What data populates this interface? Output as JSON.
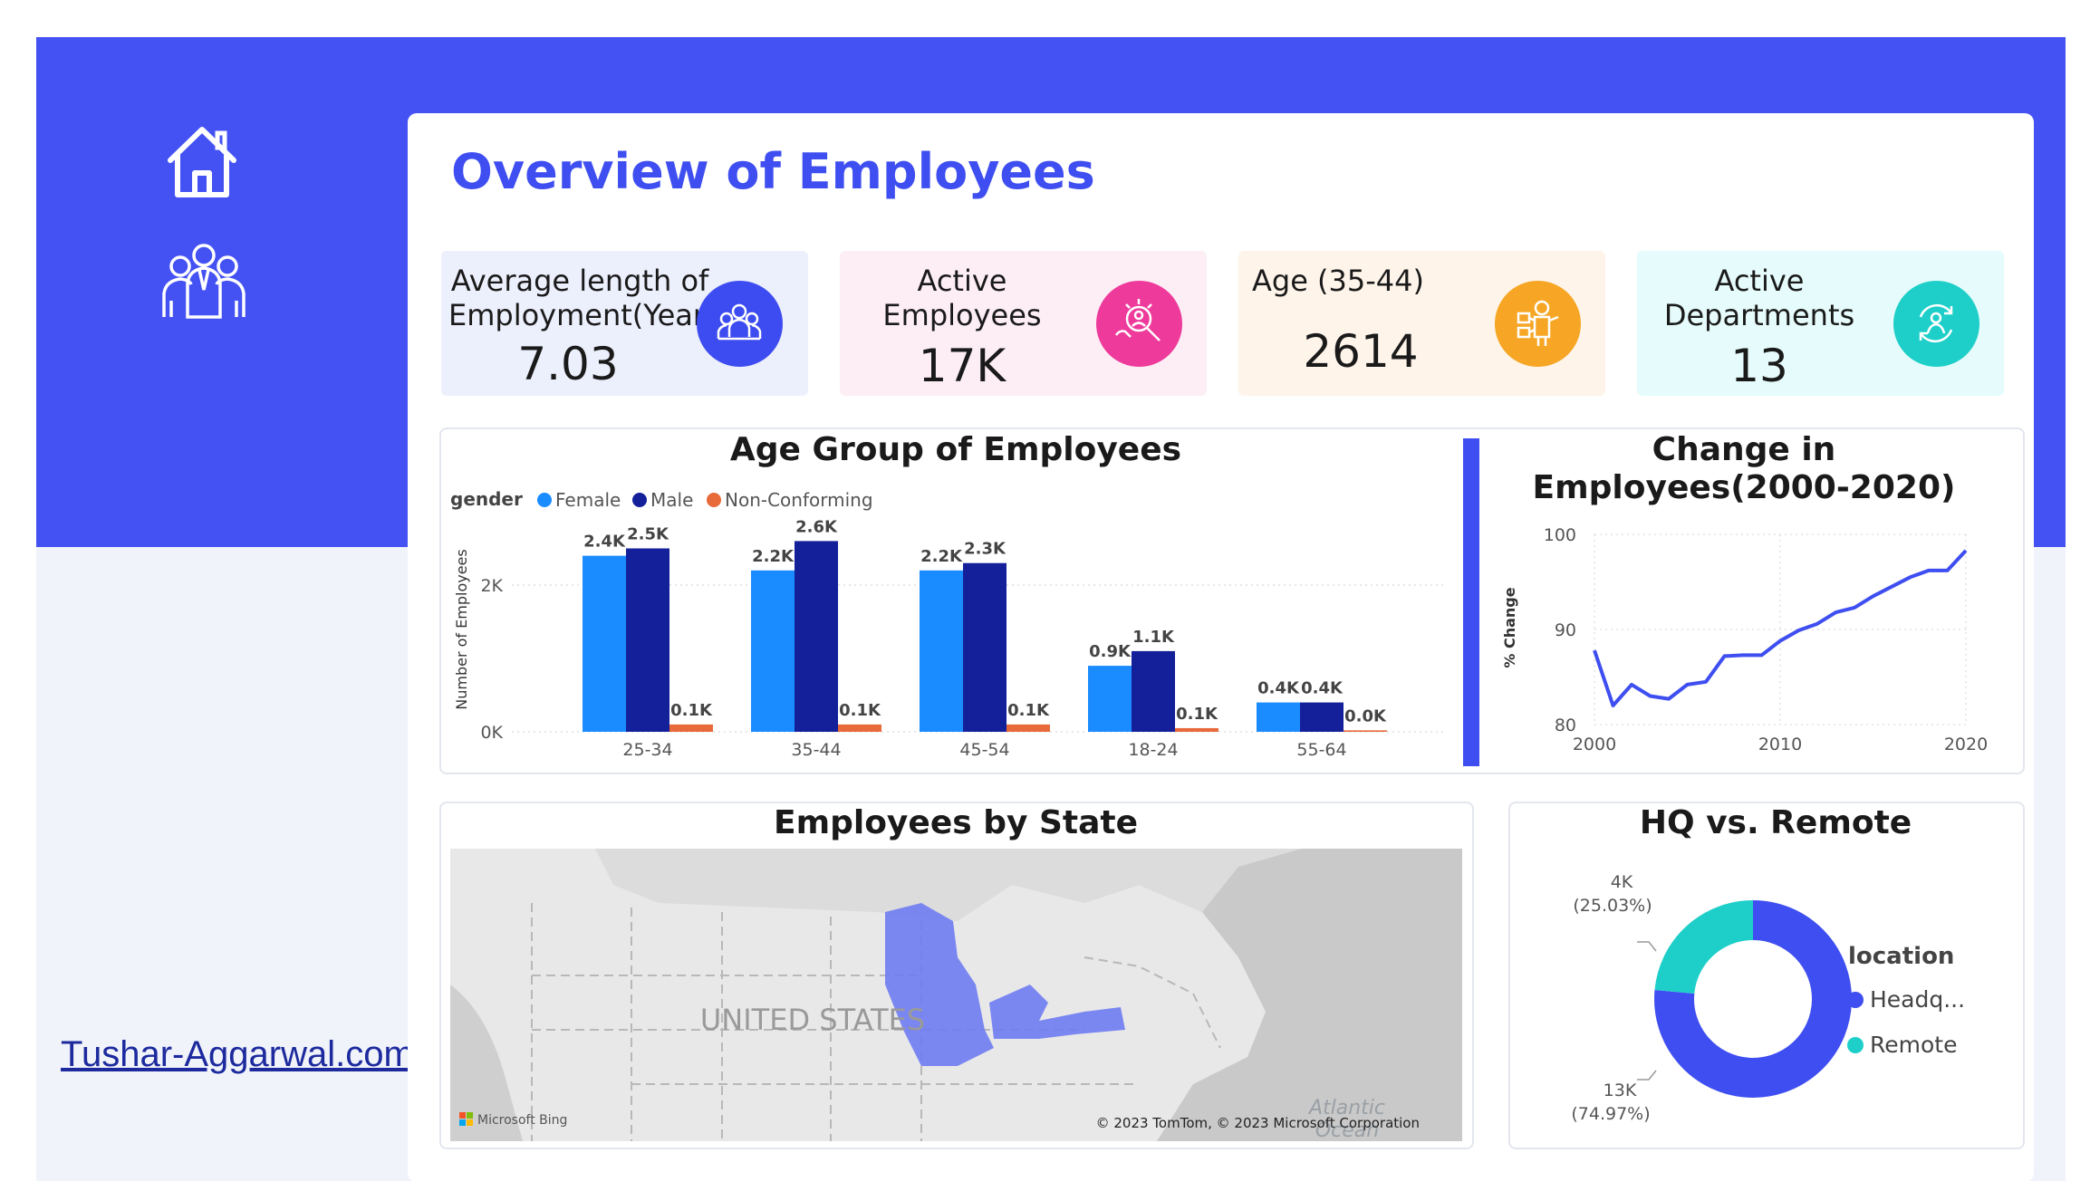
{
  "title": "Overview of Employees",
  "site_link": "Tushar-Aggarwal.com",
  "kpis": [
    {
      "label_lines": [
        "Average length of",
        "Employment(Years)"
      ],
      "value": "7.03",
      "bg": "#eceffc",
      "icon_color": "#3d4cf0",
      "icon": "team-icon"
    },
    {
      "label_lines": [
        "Active",
        "Employees"
      ],
      "value": "17K",
      "bg": "#fdeef5",
      "icon_color": "#ee3a9b",
      "icon": "recruit-search-icon"
    },
    {
      "label_lines": [
        "Age (35-44)"
      ],
      "value": "2614",
      "bg": "#fef4ea",
      "icon_color": "#f6a624",
      "icon": "worker-icon"
    },
    {
      "label_lines": [
        "Active",
        "Departments"
      ],
      "value": "13",
      "bg": "#e6fbfb",
      "icon_color": "#1ecfc9",
      "icon": "department-cycle-icon"
    }
  ],
  "age_chart": {
    "title": "Age Group of Employees",
    "legend_title": "gender",
    "ylabel": "Number of Employees",
    "yticks": [
      "0K",
      "2K"
    ],
    "chart_data": {
      "type": "bar",
      "categories": [
        "25-34",
        "35-44",
        "45-54",
        "18-24",
        "55-64"
      ],
      "series": [
        {
          "name": "Female",
          "color": "#1a8cff",
          "values": [
            2400,
            2200,
            2200,
            900,
            400
          ],
          "labels": [
            "2.4K",
            "2.2K",
            "2.2K",
            "0.9K",
            "0.4K"
          ]
        },
        {
          "name": "Male",
          "color": "#13209a",
          "values": [
            2500,
            2600,
            2300,
            1100,
            400
          ],
          "labels": [
            "2.5K",
            "2.6K",
            "2.3K",
            "1.1K",
            "0.4K"
          ]
        },
        {
          "name": "Non-Conforming",
          "color": "#e8693a",
          "values": [
            100,
            100,
            100,
            50,
            20
          ],
          "labels": [
            "0.1K",
            "0.1K",
            "0.1K",
            "0.1K",
            "0.0K"
          ]
        }
      ],
      "ylim": [
        0,
        3000
      ]
    }
  },
  "change_chart": {
    "title_lines": [
      "Change in",
      "Employees(2000-2020)"
    ],
    "ylabel": "% Change",
    "chart_data": {
      "type": "line",
      "x": [
        2000,
        2001,
        2002,
        2003,
        2004,
        2005,
        2006,
        2007,
        2008,
        2009,
        2010,
        2011,
        2012,
        2013,
        2014,
        2015,
        2016,
        2017,
        2018,
        2019,
        2020
      ],
      "y": [
        87.8,
        82.0,
        84.2,
        83.0,
        82.7,
        84.2,
        84.5,
        87.2,
        87.3,
        87.3,
        88.8,
        89.9,
        90.6,
        91.8,
        92.3,
        93.5,
        94.5,
        95.5,
        96.2,
        96.2,
        98.3
      ],
      "xticks": [
        2000,
        2010,
        2020
      ],
      "yticks": [
        80,
        90,
        100
      ],
      "ylim": [
        80,
        100
      ],
      "color": "#3e4ef0"
    }
  },
  "map": {
    "title": "Employees by State",
    "country_label": "UNITED STATES",
    "ocean_label": "Atlantic\nOcean",
    "brand": "Microsoft Bing",
    "copyright": "© 2023 TomTom, © 2023 Microsoft Corporation",
    "highlight_color": "#6f7cf2"
  },
  "donut": {
    "title": "HQ vs. Remote",
    "legend_title": "location",
    "chart_data": {
      "type": "pie",
      "labels": [
        "Headq...",
        "Remote"
      ],
      "values": [
        13000,
        4000
      ],
      "percents": [
        "74.97%",
        "25.03%"
      ],
      "value_labels": [
        "13K",
        "4K"
      ],
      "colors": [
        "#3e4ef0",
        "#1ecfc9"
      ]
    },
    "callout_top_value": "4K",
    "callout_top_pct": "(25.03%)",
    "callout_bottom_value": "13K",
    "callout_bottom_pct": "(74.97%)"
  }
}
